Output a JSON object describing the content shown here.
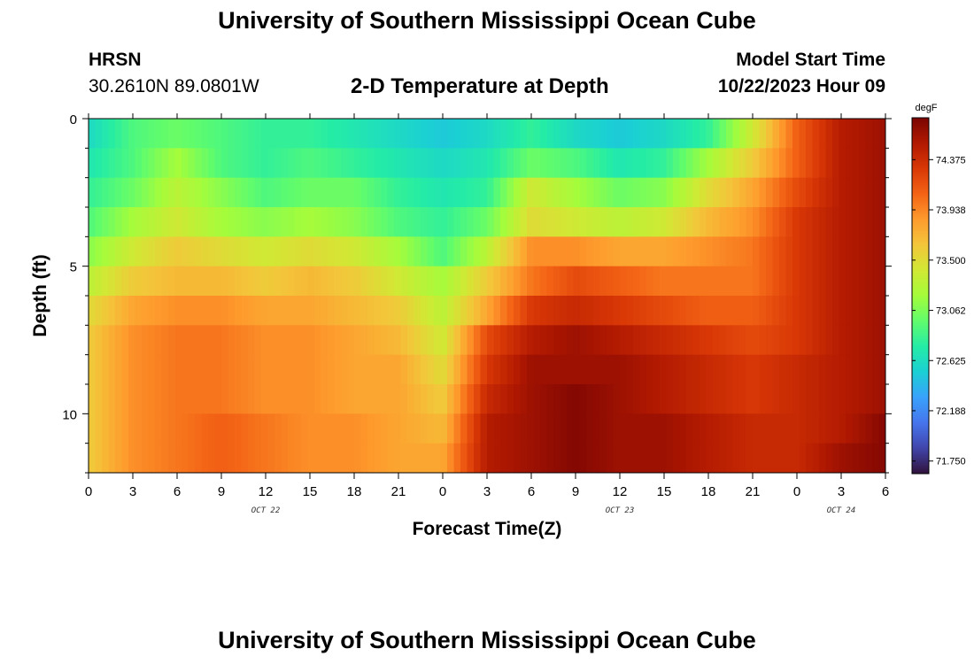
{
  "header": {
    "title": "University of Southern Mississippi Ocean Cube",
    "station": "HRSN",
    "coords": "30.2610N  89.0801W",
    "plot_title": "2-D Temperature at Depth",
    "start_label": "Model Start Time",
    "start_value": "10/22/2023 Hour 09"
  },
  "footer": {
    "title": "University of Southern Mississippi Ocean Cube"
  },
  "chart_data": {
    "type": "heatmap",
    "title": "2-D Temperature at Depth",
    "xlabel": "Forecast Time(Z)",
    "ylabel": "Depth (ft)",
    "x_ticks": [
      "0",
      "3",
      "6",
      "9",
      "12",
      "15",
      "18",
      "21",
      "0",
      "3",
      "6",
      "9",
      "12",
      "15",
      "18",
      "21",
      "0",
      "3",
      "6"
    ],
    "x_range_hours": [
      0,
      54
    ],
    "day_labels": [
      {
        "hour": 12,
        "label": "OCT 22"
      },
      {
        "hour": 36,
        "label": "OCT 23"
      },
      {
        "hour": 51,
        "label": "OCT 24"
      }
    ],
    "y_ticks": [
      "0",
      "5",
      "10"
    ],
    "y_range_ft": [
      0,
      12
    ],
    "colorbar": {
      "unit": "degF",
      "range": [
        71.64,
        74.74
      ],
      "labels": [
        "74.375",
        "73.938",
        "73.500",
        "73.062",
        "72.625",
        "72.188",
        "71.750"
      ],
      "colors": [
        "#30123b",
        "#4145ab",
        "#4675ed",
        "#39a2fc",
        "#1bcfd4",
        "#24eca6",
        "#61fc6c",
        "#a4fc3b",
        "#d1e834",
        "#f3c63a",
        "#fe9b2d",
        "#f36315",
        "#d93806",
        "#b11901",
        "#7a0403"
      ]
    },
    "depths_ft": [
      0.5,
      1.5,
      2.5,
      3.5,
      4.5,
      5.5,
      6.5,
      7.5,
      8.5,
      9.5,
      10.5,
      11.5
    ],
    "hours": [
      0,
      3,
      6,
      9,
      12,
      15,
      18,
      21,
      24,
      27,
      30,
      33,
      36,
      39,
      42,
      45,
      48,
      51,
      54
    ],
    "values_degF": [
      [
        72.6,
        72.9,
        73.0,
        72.9,
        72.8,
        72.8,
        72.7,
        72.6,
        72.5,
        72.6,
        72.8,
        72.6,
        72.5,
        72.6,
        72.8,
        73.4,
        74.1,
        74.5,
        74.6
      ],
      [
        72.7,
        72.9,
        73.2,
        72.9,
        72.8,
        72.9,
        72.8,
        72.7,
        72.6,
        72.7,
        73.0,
        72.9,
        72.7,
        72.8,
        73.2,
        73.6,
        74.1,
        74.5,
        74.6
      ],
      [
        72.8,
        73.0,
        73.3,
        73.1,
        72.9,
        73.0,
        73.0,
        72.8,
        72.7,
        72.8,
        73.4,
        73.2,
        73.0,
        73.1,
        73.5,
        73.8,
        74.2,
        74.5,
        74.6
      ],
      [
        72.9,
        73.2,
        73.4,
        73.2,
        73.1,
        73.2,
        73.1,
        72.9,
        72.8,
        73.0,
        73.5,
        73.4,
        73.3,
        73.4,
        73.7,
        73.9,
        74.3,
        74.5,
        74.6
      ],
      [
        73.1,
        73.4,
        73.6,
        73.5,
        73.4,
        73.5,
        73.4,
        73.2,
        72.9,
        73.3,
        73.9,
        73.9,
        73.8,
        73.8,
        73.9,
        74.0,
        74.3,
        74.5,
        74.6
      ],
      [
        73.3,
        73.6,
        73.7,
        73.7,
        73.6,
        73.7,
        73.6,
        73.4,
        73.2,
        73.6,
        74.0,
        74.2,
        74.1,
        74.0,
        74.0,
        74.0,
        74.3,
        74.5,
        74.6
      ],
      [
        73.5,
        73.8,
        73.9,
        73.9,
        73.8,
        73.8,
        73.7,
        73.6,
        73.3,
        73.8,
        74.3,
        74.4,
        74.3,
        74.2,
        74.1,
        74.1,
        74.3,
        74.5,
        74.6
      ],
      [
        73.6,
        73.9,
        74.0,
        74.0,
        73.9,
        73.9,
        73.8,
        73.7,
        73.4,
        74.2,
        74.5,
        74.6,
        74.5,
        74.4,
        74.3,
        74.2,
        74.3,
        74.5,
        74.6
      ],
      [
        73.6,
        73.9,
        74.0,
        74.0,
        73.9,
        73.9,
        73.8,
        73.8,
        73.5,
        74.3,
        74.6,
        74.6,
        74.6,
        74.5,
        74.4,
        74.3,
        74.4,
        74.5,
        74.6
      ],
      [
        73.6,
        73.9,
        74.0,
        74.0,
        73.9,
        73.9,
        73.8,
        73.8,
        73.6,
        74.4,
        74.6,
        74.7,
        74.6,
        74.5,
        74.4,
        74.3,
        74.4,
        74.5,
        74.6
      ],
      [
        73.6,
        73.9,
        74.0,
        74.1,
        74.0,
        73.9,
        73.9,
        73.8,
        73.7,
        74.5,
        74.6,
        74.7,
        74.6,
        74.6,
        74.5,
        74.4,
        74.4,
        74.5,
        74.7
      ],
      [
        73.6,
        73.9,
        74.0,
        74.1,
        74.0,
        73.9,
        73.9,
        73.8,
        73.8,
        74.5,
        74.6,
        74.7,
        74.6,
        74.6,
        74.5,
        74.4,
        74.4,
        74.6,
        74.7
      ]
    ]
  }
}
